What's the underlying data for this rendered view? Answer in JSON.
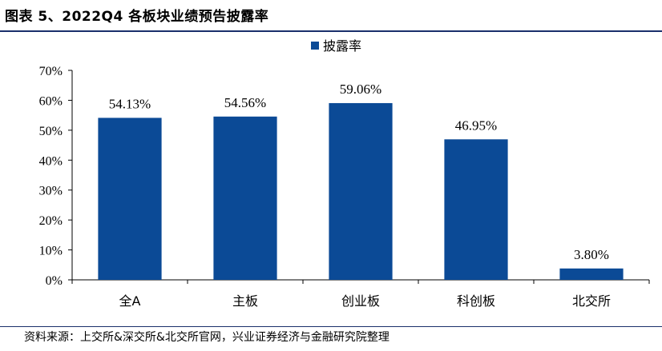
{
  "header": {
    "title": "图表 5、2022Q4 各板块业绩预告披露率"
  },
  "footer": {
    "source": "资料来源：上交所&深交所&北交所官网，兴业证券经济与金融研究院整理"
  },
  "colors": {
    "bar": "#0b4a96",
    "rule": "#1a2f6b",
    "axis": "#000000"
  },
  "chart_data": {
    "type": "bar",
    "title": "",
    "xlabel": "",
    "ylabel": "",
    "categories": [
      "全A",
      "主板",
      "创业板",
      "科创板",
      "北交所"
    ],
    "series": [
      {
        "name": "披露率",
        "values": [
          54.13,
          54.56,
          59.06,
          46.95,
          3.8
        ]
      }
    ],
    "data_labels": [
      "54.13%",
      "54.56%",
      "59.06%",
      "46.95%",
      "3.80%"
    ],
    "ylim": [
      0,
      70
    ],
    "yticks": [
      0,
      10,
      20,
      30,
      40,
      50,
      60,
      70
    ],
    "ytick_labels": [
      "0%",
      "10%",
      "20%",
      "30%",
      "40%",
      "50%",
      "60%",
      "70%"
    ],
    "grid": false,
    "legend": "top-center"
  }
}
